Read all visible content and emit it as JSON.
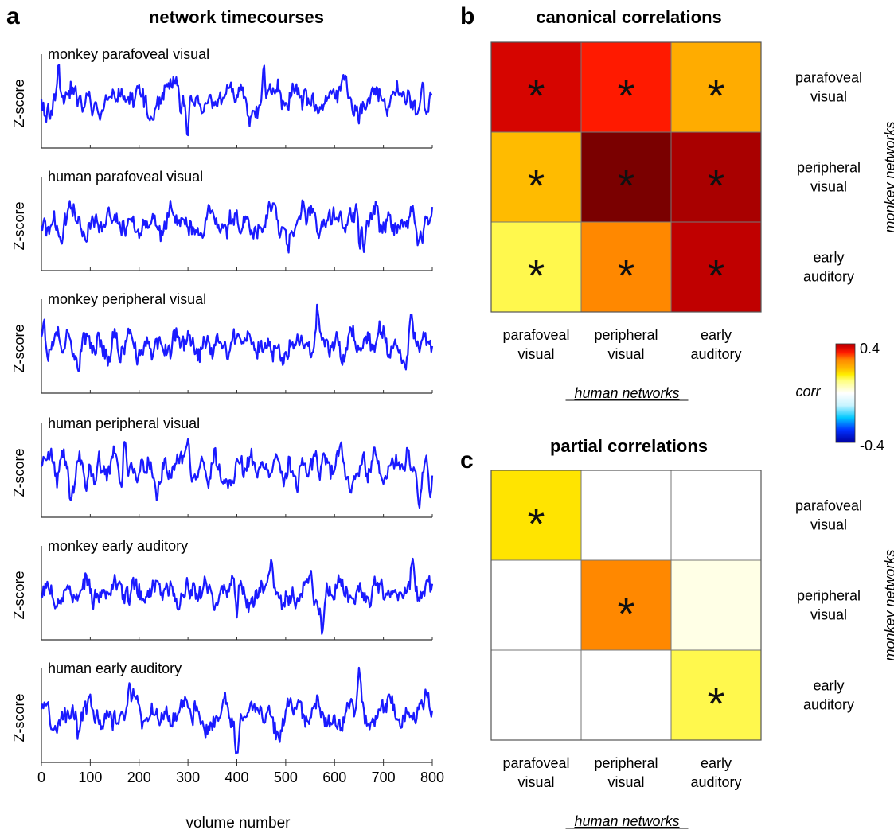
{
  "panel_letters": {
    "a": "a",
    "b": "b",
    "c": "c"
  },
  "chart_data": [
    {
      "type": "line",
      "panel": "a",
      "title": "network timecourses",
      "xlabel": "volume number",
      "ylabel": "Z-score",
      "xlim": [
        0,
        800
      ],
      "x_ticks": [
        0,
        100,
        200,
        300,
        400,
        500,
        600,
        700,
        800
      ],
      "line_color": "#1a1aff",
      "series": [
        {
          "name": "monkey parafoveal visual",
          "seed": 11,
          "peaks": [
            [
              35,
              1.9
            ],
            [
              300,
              -1.6
            ],
            [
              455,
              2.2
            ],
            [
              780,
              1.6
            ]
          ]
        },
        {
          "name": "human parafoveal visual",
          "seed": 23,
          "peaks": [
            [
              505,
              -1.9
            ],
            [
              535,
              1.8
            ],
            [
              645,
              2.1
            ],
            [
              660,
              -1.5
            ]
          ]
        },
        {
          "name": "monkey peripheral visual",
          "seed": 37,
          "peaks": [
            [
              5,
              2.0
            ],
            [
              160,
              -1.5
            ],
            [
              565,
              2.3
            ],
            [
              755,
              1.4
            ]
          ]
        },
        {
          "name": "human peripheral visual",
          "seed": 41,
          "peaks": [
            [
              170,
              1.8
            ],
            [
              300,
              1.4
            ],
            [
              560,
              1.3
            ],
            [
              795,
              -1.3
            ]
          ]
        },
        {
          "name": "monkey early auditory",
          "seed": 53,
          "peaks": [
            [
              400,
              -2.1
            ],
            [
              470,
              1.6
            ],
            [
              575,
              -1.6
            ],
            [
              760,
              2.0
            ]
          ]
        },
        {
          "name": "human early auditory",
          "seed": 67,
          "peaks": [
            [
              75,
              -1.7
            ],
            [
              180,
              1.8
            ],
            [
              400,
              -1.6
            ],
            [
              650,
              1.9
            ]
          ]
        }
      ]
    },
    {
      "type": "heatmap",
      "panel": "b",
      "title": "canonical correlations",
      "xlabel": "human networks",
      "ylabel": "monkey networks",
      "x_categories": [
        "parafoveal\nvisual",
        "peripheral\nvisual",
        "early\nauditory"
      ],
      "y_categories": [
        "parafoveal\nvisual",
        "peripheral\nvisual",
        "early\nauditory"
      ],
      "values": [
        [
          0.37,
          0.33,
          0.22
        ],
        [
          0.2,
          0.46,
          0.41
        ],
        [
          0.12,
          0.27,
          0.39
        ]
      ],
      "significant": [
        [
          true,
          true,
          true
        ],
        [
          true,
          true,
          true
        ],
        [
          true,
          true,
          true
        ]
      ],
      "marker": "*"
    },
    {
      "type": "heatmap",
      "panel": "c",
      "title": "partial correlations",
      "xlabel": "human networks",
      "ylabel": "monkey networks",
      "x_categories": [
        "parafoveal\nvisual",
        "peripheral\nvisual",
        "early\nauditory"
      ],
      "y_categories": [
        "parafoveal\nvisual",
        "peripheral\nvisual",
        "early\nauditory"
      ],
      "values": [
        [
          0.16,
          0.0,
          0.0
        ],
        [
          0.0,
          0.27,
          0.02
        ],
        [
          0.0,
          0.0,
          0.12
        ]
      ],
      "significant": [
        [
          true,
          false,
          false
        ],
        [
          false,
          true,
          false
        ],
        [
          false,
          false,
          true
        ]
      ],
      "marker": "*"
    }
  ],
  "colorbar": {
    "label": "corr",
    "min_label": "-0.4",
    "max_label": "0.4",
    "range": [
      -0.4,
      0.4
    ],
    "stops": [
      [
        -0.4,
        "#0000a0"
      ],
      [
        -0.3,
        "#0030ff"
      ],
      [
        -0.2,
        "#00c8ff"
      ],
      [
        -0.1,
        "#c8f4ff"
      ],
      [
        0.0,
        "#ffffff"
      ],
      [
        0.1,
        "#ffff80"
      ],
      [
        0.15,
        "#ffee00"
      ],
      [
        0.2,
        "#ffbb00"
      ],
      [
        0.27,
        "#ff8800"
      ],
      [
        0.33,
        "#ff1a00"
      ],
      [
        0.38,
        "#cc0000"
      ],
      [
        0.45,
        "#7a0000"
      ]
    ]
  }
}
